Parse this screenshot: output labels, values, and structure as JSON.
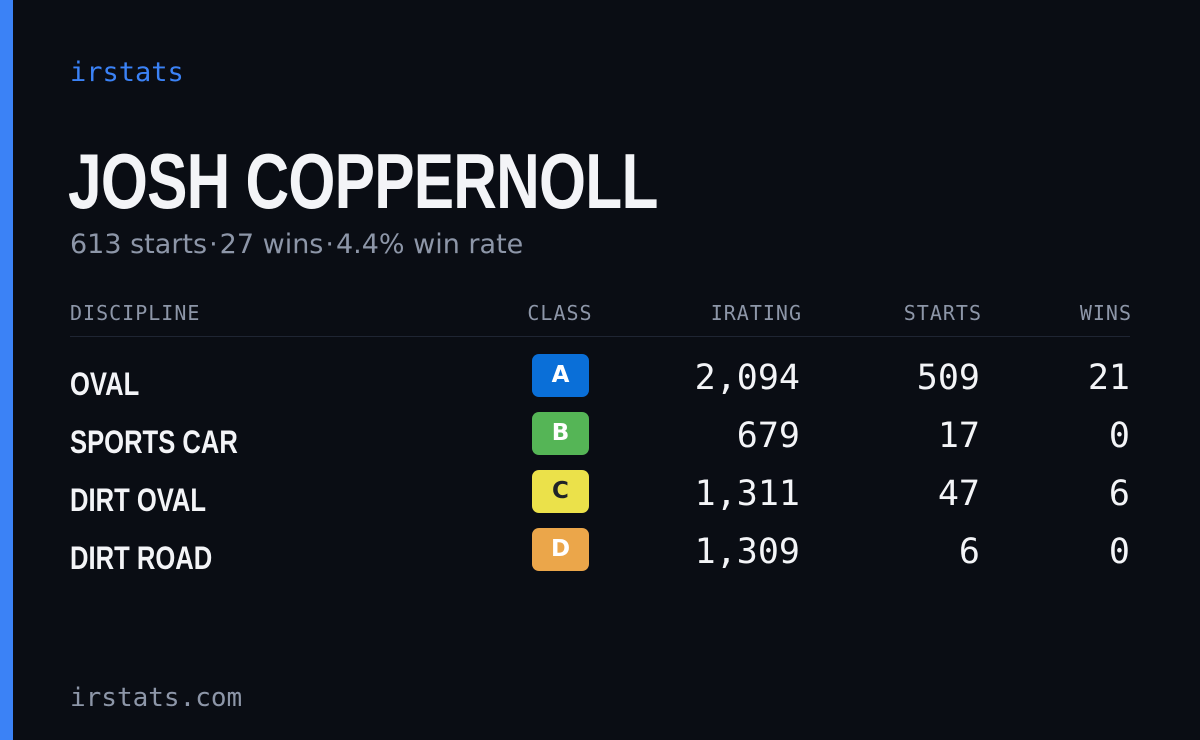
{
  "brand": "irstats",
  "driver": {
    "name": "JOSH COPPERNOLL",
    "summary": [
      "613 starts",
      "27 wins",
      "4.4% win rate"
    ]
  },
  "colors": {
    "accent": "#3b82f6",
    "background": "#0a0d14",
    "text": "#f3f4f7",
    "muted": "#8d96a8"
  },
  "table": {
    "headers": {
      "discipline": "DISCIPLINE",
      "class": "CLASS",
      "irating": "IRATING",
      "starts": "STARTS",
      "wins": "WINS"
    },
    "rows": [
      {
        "discipline": "OVAL",
        "class": "A",
        "class_color": "#0a6fd8",
        "class_text_color": "#ffffff",
        "irating": "2,094",
        "starts": "509",
        "wins": "21"
      },
      {
        "discipline": "SPORTS CAR",
        "class": "B",
        "class_color": "#55b556",
        "class_text_color": "#ffffff",
        "irating": "679",
        "starts": "17",
        "wins": "0"
      },
      {
        "discipline": "DIRT OVAL",
        "class": "C",
        "class_color": "#ebe14a",
        "class_text_color": "#1f2328",
        "irating": "1,311",
        "starts": "47",
        "wins": "6"
      },
      {
        "discipline": "DIRT ROAD",
        "class": "D",
        "class_color": "#eba64a",
        "class_text_color": "#ffffff",
        "irating": "1,309",
        "starts": "6",
        "wins": "0"
      }
    ]
  },
  "footer": "irstats.com"
}
